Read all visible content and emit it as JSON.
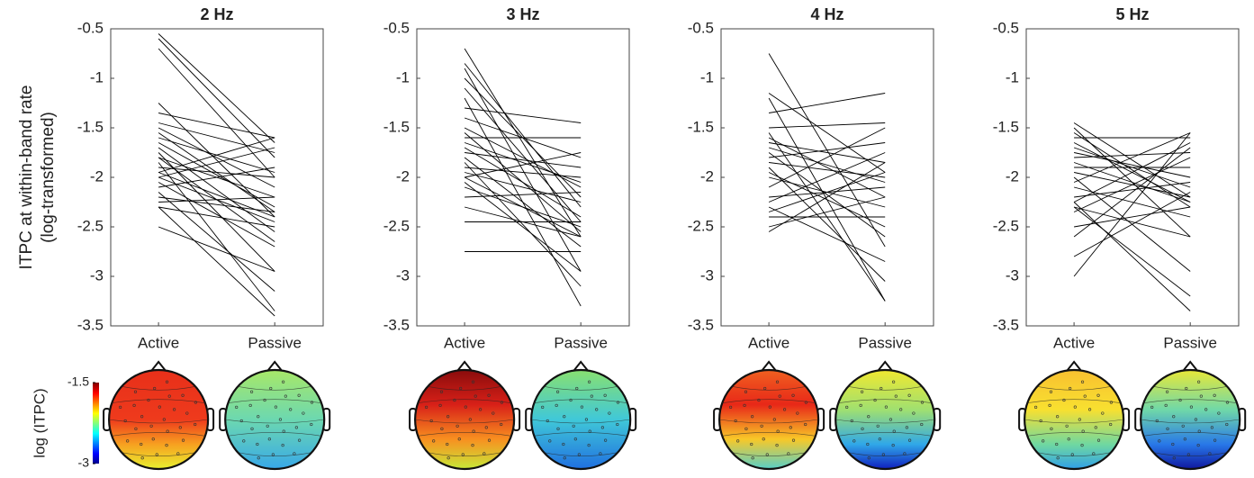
{
  "chart_data": [
    {
      "type": "slope",
      "title": "2 Hz",
      "ylabel": [
        "ITPC at within-band rate",
        "(log-transformed)"
      ],
      "categories": [
        "Active",
        "Passive"
      ],
      "color": "#000000",
      "ylim": [
        -3.5,
        -0.5
      ],
      "yticks": [
        -0.5,
        -1,
        -1.5,
        -2,
        -2.5,
        -3,
        -3.5
      ],
      "series": [
        {
          "values": [
            -0.55,
            -1.65
          ]
        },
        {
          "values": [
            -0.6,
            -1.8
          ]
        },
        {
          "values": [
            -0.7,
            -2.0
          ]
        },
        {
          "values": [
            -1.25,
            -2.4
          ]
        },
        {
          "values": [
            -1.35,
            -1.6
          ]
        },
        {
          "values": [
            -1.45,
            -1.75
          ]
        },
        {
          "values": [
            -1.5,
            -2.1
          ]
        },
        {
          "values": [
            -1.55,
            -2.35
          ]
        },
        {
          "values": [
            -1.6,
            -1.95
          ]
        },
        {
          "values": [
            -1.65,
            -2.3
          ]
        },
        {
          "values": [
            -1.7,
            -2.55
          ]
        },
        {
          "values": [
            -1.75,
            -2.95
          ]
        },
        {
          "values": [
            -1.8,
            -2.2
          ]
        },
        {
          "values": [
            -1.85,
            -3.35
          ]
        },
        {
          "values": [
            -1.9,
            -2.0
          ]
        },
        {
          "values": [
            -1.95,
            -1.6
          ]
        },
        {
          "values": [
            -1.95,
            -2.4
          ]
        },
        {
          "values": [
            -2.0,
            -2.45
          ]
        },
        {
          "values": [
            -2.05,
            -2.7
          ]
        },
        {
          "values": [
            -2.1,
            -1.9
          ]
        },
        {
          "values": [
            -2.15,
            -3.15
          ]
        },
        {
          "values": [
            -2.2,
            -2.35
          ]
        },
        {
          "values": [
            -2.25,
            -2.2
          ]
        },
        {
          "values": [
            -2.3,
            -2.5
          ]
        },
        {
          "values": [
            -2.3,
            -3.4
          ]
        },
        {
          "values": [
            -2.5,
            -2.95
          ]
        },
        {
          "values": [
            -2.0,
            -1.7
          ]
        },
        {
          "values": [
            -1.8,
            -2.65
          ]
        }
      ]
    },
    {
      "type": "slope",
      "title": "3 Hz",
      "categories": [
        "Active",
        "Passive"
      ],
      "color": "#000000",
      "ylim": [
        -3.5,
        -0.5
      ],
      "yticks": [
        -0.5,
        -1,
        -1.5,
        -2,
        -2.5,
        -3,
        -3.5
      ],
      "series": [
        {
          "values": [
            -0.7,
            -2.6
          ]
        },
        {
          "values": [
            -0.85,
            -2.3
          ]
        },
        {
          "values": [
            -0.9,
            -2.95
          ]
        },
        {
          "values": [
            -1.0,
            -2.2
          ]
        },
        {
          "values": [
            -1.2,
            -3.3
          ]
        },
        {
          "values": [
            -1.3,
            -1.45
          ]
        },
        {
          "values": [
            -1.4,
            -1.8
          ]
        },
        {
          "values": [
            -1.5,
            -2.1
          ]
        },
        {
          "values": [
            -1.55,
            -2.55
          ]
        },
        {
          "values": [
            -1.6,
            -1.6
          ]
        },
        {
          "values": [
            -1.7,
            -2.4
          ]
        },
        {
          "values": [
            -1.75,
            -1.9
          ]
        },
        {
          "values": [
            -1.8,
            -2.7
          ]
        },
        {
          "values": [
            -1.85,
            -3.1
          ]
        },
        {
          "values": [
            -1.9,
            -2.0
          ]
        },
        {
          "values": [
            -1.95,
            -2.25
          ]
        },
        {
          "values": [
            -2.0,
            -2.6
          ]
        },
        {
          "values": [
            -2.0,
            -1.75
          ]
        },
        {
          "values": [
            -2.05,
            -2.95
          ]
        },
        {
          "values": [
            -2.1,
            -2.5
          ]
        },
        {
          "values": [
            -2.2,
            -2.15
          ]
        },
        {
          "values": [
            -2.3,
            -2.6
          ]
        },
        {
          "values": [
            -2.45,
            -2.45
          ]
        },
        {
          "values": [
            -2.75,
            -2.75
          ]
        },
        {
          "values": [
            -1.65,
            -2.05
          ]
        },
        {
          "values": [
            -1.1,
            -2.45
          ]
        }
      ]
    },
    {
      "type": "slope",
      "title": "4 Hz",
      "categories": [
        "Active",
        "Passive"
      ],
      "color": "#000000",
      "ylim": [
        -3.5,
        -0.5
      ],
      "yticks": [
        -0.5,
        -1,
        -1.5,
        -2,
        -2.5,
        -3,
        -3.5
      ],
      "series": [
        {
          "values": [
            -0.75,
            -2.7
          ]
        },
        {
          "values": [
            -1.15,
            -1.95
          ]
        },
        {
          "values": [
            -1.2,
            -3.25
          ]
        },
        {
          "values": [
            -1.35,
            -1.15
          ]
        },
        {
          "values": [
            -1.5,
            -1.45
          ]
        },
        {
          "values": [
            -1.6,
            -2.2
          ]
        },
        {
          "values": [
            -1.65,
            -1.85
          ]
        },
        {
          "values": [
            -1.7,
            -2.05
          ]
        },
        {
          "values": [
            -1.75,
            -2.6
          ]
        },
        {
          "values": [
            -1.8,
            -1.65
          ]
        },
        {
          "values": [
            -1.85,
            -2.0
          ]
        },
        {
          "values": [
            -1.9,
            -3.05
          ]
        },
        {
          "values": [
            -2.0,
            -2.3
          ]
        },
        {
          "values": [
            -2.1,
            -1.5
          ]
        },
        {
          "values": [
            -2.2,
            -2.1
          ]
        },
        {
          "values": [
            -2.25,
            -1.75
          ]
        },
        {
          "values": [
            -2.3,
            -2.85
          ]
        },
        {
          "values": [
            -2.35,
            -1.95
          ]
        },
        {
          "values": [
            -2.4,
            -2.4
          ]
        },
        {
          "values": [
            -2.5,
            -2.2
          ]
        },
        {
          "values": [
            -2.55,
            -1.85
          ]
        },
        {
          "values": [
            -1.55,
            -3.25
          ]
        },
        {
          "values": [
            -1.95,
            -2.5
          ]
        }
      ]
    },
    {
      "type": "slope",
      "title": "5 Hz",
      "categories": [
        "Active",
        "Passive"
      ],
      "color": "#000000",
      "ylim": [
        -3.5,
        -0.5
      ],
      "yticks": [
        -0.5,
        -1,
        -1.5,
        -2,
        -2.5,
        -3,
        -3.5
      ],
      "series": [
        {
          "values": [
            -1.45,
            -2.2
          ]
        },
        {
          "values": [
            -1.5,
            -2.6
          ]
        },
        {
          "values": [
            -1.55,
            -2.3
          ]
        },
        {
          "values": [
            -1.6,
            -1.6
          ]
        },
        {
          "values": [
            -1.7,
            -2.1
          ]
        },
        {
          "values": [
            -1.75,
            -2.0
          ]
        },
        {
          "values": [
            -1.8,
            -1.75
          ]
        },
        {
          "values": [
            -1.85,
            -2.25
          ]
        },
        {
          "values": [
            -1.9,
            -1.9
          ]
        },
        {
          "values": [
            -1.95,
            -2.2
          ]
        },
        {
          "values": [
            -2.0,
            -2.95
          ]
        },
        {
          "values": [
            -2.05,
            -1.55
          ]
        },
        {
          "values": [
            -2.1,
            -2.4
          ]
        },
        {
          "values": [
            -2.2,
            -2.05
          ]
        },
        {
          "values": [
            -2.25,
            -1.65
          ]
        },
        {
          "values": [
            -2.3,
            -2.6
          ]
        },
        {
          "values": [
            -2.3,
            -3.2
          ]
        },
        {
          "values": [
            -2.35,
            -1.8
          ]
        },
        {
          "values": [
            -2.5,
            -2.3
          ]
        },
        {
          "values": [
            -2.6,
            -1.7
          ]
        },
        {
          "values": [
            -2.8,
            -2.15
          ]
        },
        {
          "values": [
            -3.0,
            -1.55
          ]
        },
        {
          "values": [
            -2.25,
            -3.35
          ]
        },
        {
          "values": [
            -1.65,
            -2.25
          ]
        }
      ]
    }
  ],
  "colorbar": {
    "label": "log (ITPC)",
    "lim": [
      -3,
      -1.5
    ],
    "ticks": [
      -1.5,
      -3
    ]
  }
}
